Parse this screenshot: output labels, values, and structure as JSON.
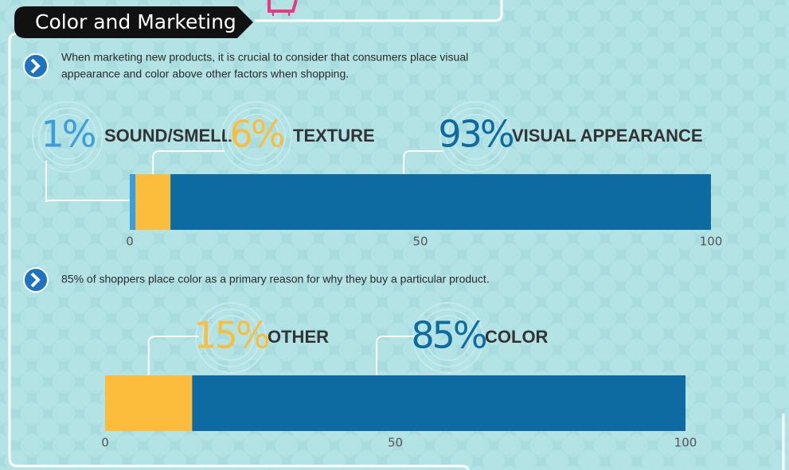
{
  "header": {
    "title": "Color and Marketing"
  },
  "chart_data": [
    {
      "type": "stacked-bar",
      "subtitle": [
        "When marketing new products, it is crucial to consider that consumers place visual",
        "appearance and color above other factors when shopping."
      ],
      "series": [
        {
          "name": "SOUND/SMELL",
          "color": "#3b9ddb",
          "values": [
            1
          ],
          "value_labels": [
            "1%"
          ]
        },
        {
          "name": "TEXTURE",
          "color": "#fbbd3b",
          "values": [
            6
          ],
          "value_labels": [
            "6%"
          ]
        },
        {
          "name": "VISUAL APPEARANCE",
          "color": "#0d6ba2",
          "values": [
            93
          ],
          "value_labels": [
            "93%"
          ]
        }
      ],
      "xlim": [
        0,
        100
      ],
      "xticks": [
        0,
        50,
        100
      ]
    },
    {
      "type": "stacked-bar",
      "subtitle": [
        "85% of shoppers place color as a primary reason for why they buy a particular product."
      ],
      "series": [
        {
          "name": "OTHER",
          "color": "#fbbd3b",
          "values": [
            15
          ],
          "value_labels": [
            "15%"
          ]
        },
        {
          "name": "COLOR",
          "color": "#0d6ba2",
          "values": [
            85
          ],
          "value_labels": [
            "85%"
          ]
        }
      ],
      "xlim": [
        0,
        100
      ],
      "xticks": [
        0,
        50,
        100
      ]
    }
  ]
}
